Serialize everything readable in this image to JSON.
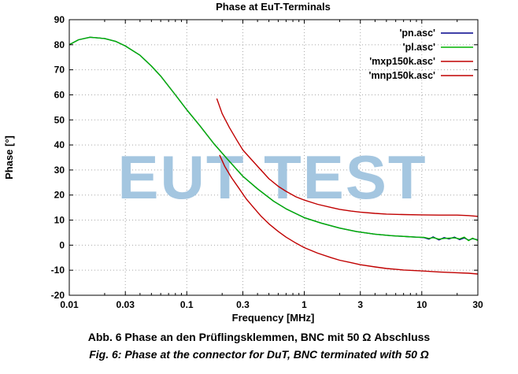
{
  "chart_data": {
    "type": "line",
    "title": "Phase at EuT-Terminals",
    "xlabel": "Frequency [MHz]",
    "ylabel": "Phase [°]",
    "x_scale": "log",
    "xlim": [
      0.01,
      30
    ],
    "ylim": [
      -20,
      90
    ],
    "grid": true,
    "legend_position": "top-right-inside",
    "watermark": "EUT TEST",
    "watermark_color": "#a4c6e0",
    "x_ticks": [
      {
        "v": 0.01,
        "label": "0.01"
      },
      {
        "v": 0.03,
        "label": "0.03"
      },
      {
        "v": 0.1,
        "label": "0.1"
      },
      {
        "v": 0.3,
        "label": "0.3"
      },
      {
        "v": 1,
        "label": "1"
      },
      {
        "v": 3,
        "label": "3"
      },
      {
        "v": 10,
        "label": "10"
      },
      {
        "v": 30,
        "label": "30"
      }
    ],
    "y_ticks": [
      {
        "v": -20,
        "label": "-20"
      },
      {
        "v": -10,
        "label": "-10"
      },
      {
        "v": 0,
        "label": "0"
      },
      {
        "v": 10,
        "label": "10"
      },
      {
        "v": 20,
        "label": "20"
      },
      {
        "v": 30,
        "label": "30"
      },
      {
        "v": 40,
        "label": "40"
      },
      {
        "v": 50,
        "label": "50"
      },
      {
        "v": 60,
        "label": "60"
      },
      {
        "v": 70,
        "label": "70"
      },
      {
        "v": 80,
        "label": "80"
      },
      {
        "v": 90,
        "label": "90"
      }
    ],
    "series": [
      {
        "name": "'pn.asc'",
        "color": "#00008b",
        "x": [
          0.01,
          0.012,
          0.015,
          0.02,
          0.025,
          0.03,
          0.04,
          0.05,
          0.06,
          0.08,
          0.1,
          0.13,
          0.17,
          0.22,
          0.3,
          0.4,
          0.55,
          0.7,
          1.0,
          1.4,
          2.0,
          2.8,
          4.0,
          5.5,
          7.5,
          9.0,
          10.5,
          11.5,
          12.5,
          14.0,
          15.5,
          17.0,
          19.0,
          21.0,
          23.0,
          25.0,
          27.0,
          30.0
        ],
        "y": [
          80,
          82,
          83,
          82.5,
          81.3,
          79.5,
          75.8,
          71.5,
          67.5,
          60,
          54,
          47.5,
          40.5,
          34.5,
          27.5,
          22.5,
          17.5,
          14.5,
          11,
          8.8,
          6.8,
          5.4,
          4.4,
          3.8,
          3.4,
          3.2,
          3.0,
          2.4,
          3.3,
          2.1,
          3.0,
          2.5,
          3.2,
          2.2,
          2.9,
          2.0,
          2.6,
          2.1
        ]
      },
      {
        "name": "'pl.asc'",
        "color": "#00b400",
        "x": [
          0.01,
          0.012,
          0.015,
          0.02,
          0.025,
          0.03,
          0.04,
          0.05,
          0.06,
          0.08,
          0.1,
          0.13,
          0.17,
          0.22,
          0.3,
          0.4,
          0.55,
          0.7,
          1.0,
          1.4,
          2.0,
          2.8,
          4.0,
          5.5,
          7.5,
          9.0,
          10.5,
          11.5,
          12.5,
          14.0,
          15.5,
          17.0,
          19.0,
          21.0,
          23.0,
          25.0,
          27.0,
          30.0
        ],
        "y": [
          80,
          82,
          83,
          82.5,
          81.3,
          79.5,
          75.8,
          71.5,
          67.5,
          60,
          54,
          47.5,
          40.5,
          34.5,
          27.5,
          22.5,
          17.5,
          14.5,
          11,
          8.8,
          6.8,
          5.4,
          4.4,
          3.8,
          3.4,
          3.2,
          3.1,
          2.7,
          3.0,
          2.4,
          2.7,
          2.8,
          2.9,
          2.5,
          3.2,
          1.8,
          2.8,
          1.9
        ]
      },
      {
        "name": "'mxp150k.asc'",
        "color": "#c00000",
        "x": [
          0.18,
          0.2,
          0.23,
          0.27,
          0.3,
          0.35,
          0.4,
          0.5,
          0.6,
          0.7,
          0.85,
          1.0,
          1.3,
          1.7,
          2.0,
          2.5,
          3.0,
          4.0,
          5.0,
          7.0,
          10,
          14,
          20,
          25,
          30
        ],
        "y": [
          58.5,
          52.5,
          47,
          41.5,
          38,
          34.5,
          31.5,
          26.5,
          23.5,
          21.5,
          19.3,
          18,
          16.3,
          15,
          14.3,
          13.6,
          13.2,
          12.7,
          12.4,
          12.2,
          12.1,
          12.0,
          12.0,
          11.8,
          11.5
        ]
      },
      {
        "name": "'mnp150k.asc'",
        "color": "#c00000",
        "x": [
          0.19,
          0.21,
          0.24,
          0.28,
          0.32,
          0.37,
          0.43,
          0.5,
          0.6,
          0.7,
          0.85,
          1.0,
          1.3,
          1.7,
          2.0,
          2.5,
          3.0,
          4.0,
          5.0,
          7.0,
          10,
          14,
          20,
          25,
          30
        ],
        "y": [
          36,
          31.5,
          27,
          22.5,
          18.5,
          15,
          11.5,
          8.5,
          5.5,
          3.2,
          0.8,
          -1.0,
          -3.2,
          -5.0,
          -6.0,
          -7.0,
          -7.8,
          -8.7,
          -9.3,
          -9.9,
          -10.3,
          -10.7,
          -11.0,
          -11.2,
          -11.5
        ]
      }
    ]
  },
  "captions": {
    "german": "Abb. 6 Phase an den Prüflingsklemmen, BNC mit 50 Ω Abschluss",
    "english": "Fig. 6: Phase at the connector for DuT, BNC terminated with 50 Ω"
  }
}
